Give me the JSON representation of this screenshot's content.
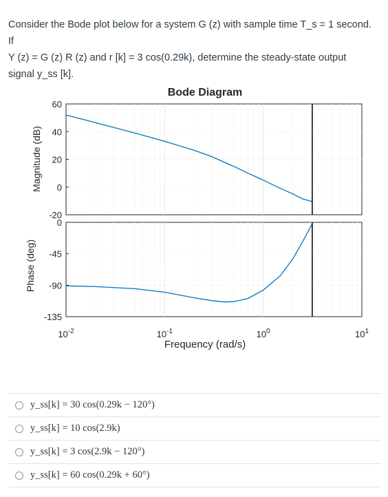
{
  "question": {
    "line1": "Consider the Bode plot below for a system G (z) with sample time T_s = 1 second. If",
    "line2": "Y (z) = G (z) R (z) and r [k] = 3 cos(0.29k), determine the steady-state output",
    "line3": "signal y_ss [k]."
  },
  "chart_data": {
    "type": "line",
    "title": "Bode Diagram",
    "xlabel": "Frequency (rad/s)",
    "xscale": "log",
    "xlim": [
      0.01,
      10
    ],
    "xticks": [
      {
        "value": 0.01,
        "base": "10",
        "exp": "-2"
      },
      {
        "value": 0.1,
        "base": "10",
        "exp": "-1"
      },
      {
        "value": 1,
        "base": "10",
        "exp": "0"
      },
      {
        "value": 10,
        "base": "10",
        "exp": "1"
      }
    ],
    "nyquist_line": 3.14,
    "grid": true,
    "magnitude": {
      "ylabel": "Magnitude (dB)",
      "ylim": [
        -20,
        60
      ],
      "yticks": [
        60,
        40,
        20,
        0,
        -20
      ],
      "color": "#0072bd",
      "x": [
        0.01,
        0.02,
        0.05,
        0.1,
        0.2,
        0.3,
        0.5,
        0.7,
        1.0,
        1.5,
        2.0,
        2.5,
        3.14
      ],
      "y": [
        52,
        46.5,
        39,
        33,
        26.5,
        22,
        15,
        10,
        5,
        -1,
        -5,
        -8.5,
        -10.5
      ]
    },
    "phase": {
      "ylabel": "Phase (deg)",
      "ylim": [
        -135,
        0
      ],
      "yticks": [
        0,
        -45,
        -90,
        -135
      ],
      "color": "#0072bd",
      "x": [
        0.01,
        0.02,
        0.05,
        0.1,
        0.2,
        0.3,
        0.4,
        0.5,
        0.7,
        1.0,
        1.5,
        2.0,
        2.5,
        3.14
      ],
      "y": [
        -91,
        -92,
        -95,
        -100,
        -108,
        -112,
        -114,
        -113.5,
        -109,
        -97,
        -76,
        -52,
        -28,
        -2
      ]
    }
  },
  "options": [
    {
      "text": "y_ss[k] = 30 cos(0.29k − 120°)"
    },
    {
      "text": "y_ss[k] = 10 cos(2.9k)"
    },
    {
      "text": "y_ss[k] = 3 cos(2.9k − 120°)"
    },
    {
      "text": "y_ss[k] = 60 cos(0.29k + 60°)"
    }
  ]
}
